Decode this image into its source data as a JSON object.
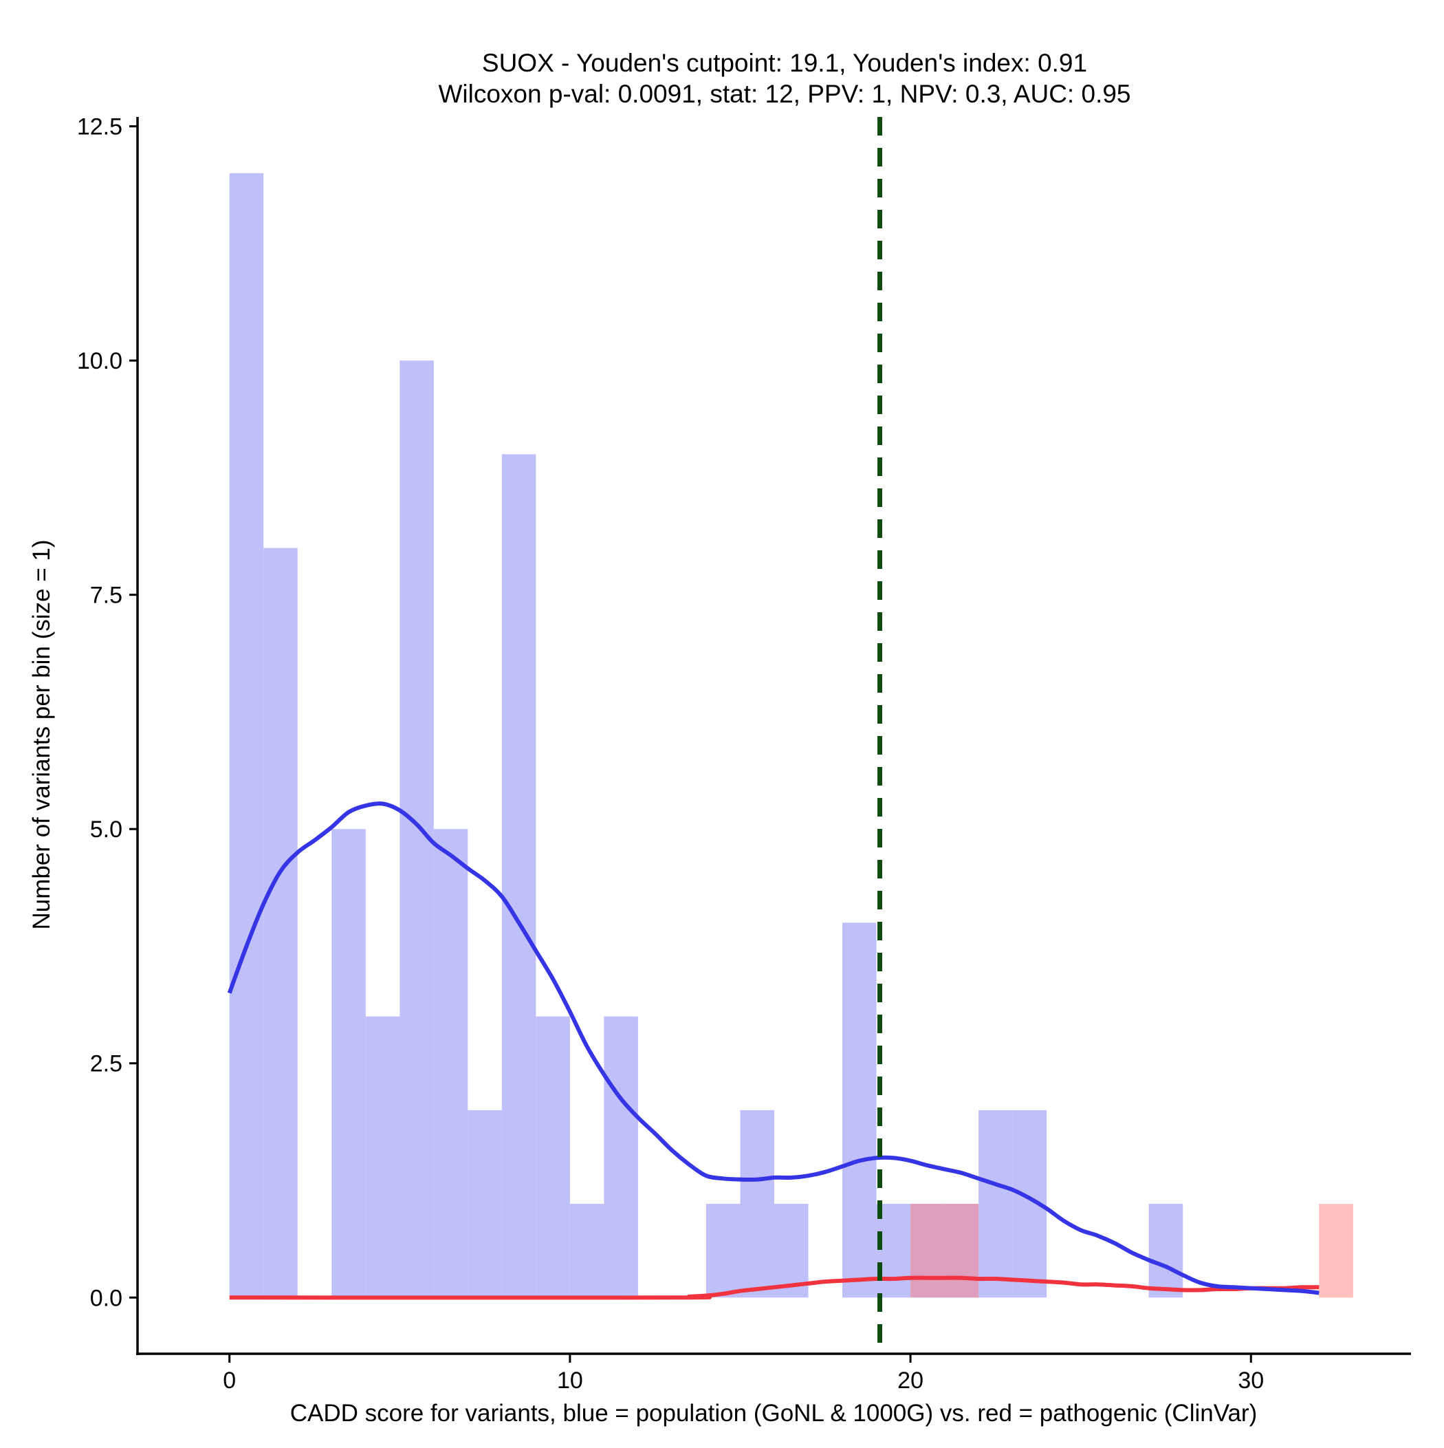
{
  "chart_data": {
    "type": "bar",
    "title_line1": "SUOX - Youden's cutpoint: 19.1, Youden's index: 0.91",
    "title_line2": "Wilcoxon p-val: 0.0091, stat: 12, PPV: 1, NPV: 0.3, AUC: 0.95",
    "xlabel": "CADD score for variants, blue = population (GoNL & 1000G) vs. red = pathogenic (ClinVar)",
    "ylabel": "Number of variants per bin (size = 1)",
    "xlim": [
      -2.7,
      34.7
    ],
    "ylim": [
      -0.6,
      12.6
    ],
    "x_ticks": [
      0,
      10,
      20,
      30
    ],
    "x_tick_labels": [
      "0",
      "10",
      "20",
      "30"
    ],
    "y_ticks": [
      0,
      2.5,
      5,
      7.5,
      10,
      12.5
    ],
    "y_tick_labels": [
      "0.0",
      "2.5",
      "5.0",
      "7.5",
      "10.0",
      "12.5"
    ],
    "bin_width": 1,
    "cutpoint": 19.1,
    "colors": {
      "population_bar": "#bfbff9",
      "pathogenic_bar": "#ffbfbf",
      "population_line": "#3535e6",
      "pathogenic_line": "#f0333f",
      "cutpoint_line": "#0f4b0f"
    },
    "series": [
      {
        "name": "population",
        "bins": [
          {
            "start": 0,
            "count": 12
          },
          {
            "start": 1,
            "count": 8
          },
          {
            "start": 3,
            "count": 5
          },
          {
            "start": 4,
            "count": 3
          },
          {
            "start": 5,
            "count": 10
          },
          {
            "start": 6,
            "count": 5
          },
          {
            "start": 7,
            "count": 2
          },
          {
            "start": 8,
            "count": 9
          },
          {
            "start": 9,
            "count": 3
          },
          {
            "start": 10,
            "count": 1
          },
          {
            "start": 11,
            "count": 3
          },
          {
            "start": 14,
            "count": 1
          },
          {
            "start": 15,
            "count": 2
          },
          {
            "start": 16,
            "count": 1
          },
          {
            "start": 18,
            "count": 4
          },
          {
            "start": 19,
            "count": 1
          },
          {
            "start": 20,
            "count": 1
          },
          {
            "start": 21,
            "count": 1
          },
          {
            "start": 22,
            "count": 2
          },
          {
            "start": 23,
            "count": 2
          },
          {
            "start": 27,
            "count": 1
          }
        ],
        "density": [
          [
            0,
            3.25
          ],
          [
            0.5,
            3.75
          ],
          [
            1,
            4.2
          ],
          [
            1.5,
            4.55
          ],
          [
            2,
            4.75
          ],
          [
            2.5,
            4.88
          ],
          [
            3,
            5.02
          ],
          [
            3.5,
            5.18
          ],
          [
            4,
            5.25
          ],
          [
            4.5,
            5.27
          ],
          [
            5,
            5.2
          ],
          [
            5.5,
            5.05
          ],
          [
            6,
            4.85
          ],
          [
            6.5,
            4.72
          ],
          [
            7,
            4.58
          ],
          [
            7.5,
            4.45
          ],
          [
            8,
            4.28
          ],
          [
            8.5,
            4.0
          ],
          [
            9,
            3.7
          ],
          [
            9.5,
            3.4
          ],
          [
            10,
            3.05
          ],
          [
            10.5,
            2.68
          ],
          [
            11,
            2.38
          ],
          [
            11.5,
            2.12
          ],
          [
            12,
            1.92
          ],
          [
            12.5,
            1.75
          ],
          [
            13,
            1.57
          ],
          [
            13.5,
            1.42
          ],
          [
            14,
            1.3
          ],
          [
            14.5,
            1.27
          ],
          [
            15,
            1.26
          ],
          [
            15.5,
            1.26
          ],
          [
            16,
            1.28
          ],
          [
            16.5,
            1.28
          ],
          [
            17,
            1.3
          ],
          [
            17.5,
            1.34
          ],
          [
            18,
            1.4
          ],
          [
            18.5,
            1.46
          ],
          [
            19,
            1.49
          ],
          [
            19.5,
            1.49
          ],
          [
            20,
            1.46
          ],
          [
            20.5,
            1.41
          ],
          [
            21,
            1.37
          ],
          [
            21.5,
            1.33
          ],
          [
            22,
            1.27
          ],
          [
            22.5,
            1.21
          ],
          [
            23,
            1.15
          ],
          [
            23.5,
            1.06
          ],
          [
            24,
            0.95
          ],
          [
            24.5,
            0.82
          ],
          [
            25,
            0.72
          ],
          [
            25.5,
            0.66
          ],
          [
            26,
            0.58
          ],
          [
            26.5,
            0.48
          ],
          [
            27,
            0.4
          ],
          [
            27.5,
            0.33
          ],
          [
            28,
            0.24
          ],
          [
            28.5,
            0.16
          ],
          [
            29,
            0.12
          ],
          [
            29.5,
            0.11
          ],
          [
            30,
            0.1
          ],
          [
            30.5,
            0.09
          ],
          [
            31,
            0.08
          ],
          [
            31.5,
            0.07
          ],
          [
            32,
            0.05
          ]
        ]
      },
      {
        "name": "pathogenic",
        "bins": [
          {
            "start": 20,
            "count": 1
          },
          {
            "start": 21,
            "count": 1
          },
          {
            "start": 32,
            "count": 1
          }
        ],
        "density": [
          [
            0,
            0
          ],
          [
            13,
            0
          ],
          [
            13.5,
            0.01
          ],
          [
            14,
            0.02
          ],
          [
            14.5,
            0.04
          ],
          [
            15,
            0.07
          ],
          [
            15.5,
            0.09
          ],
          [
            16,
            0.11
          ],
          [
            16.5,
            0.13
          ],
          [
            17,
            0.15
          ],
          [
            17.5,
            0.17
          ],
          [
            18,
            0.18
          ],
          [
            18.5,
            0.19
          ],
          [
            19,
            0.2
          ],
          [
            19.5,
            0.2
          ],
          [
            20,
            0.21
          ],
          [
            20.5,
            0.21
          ],
          [
            21,
            0.21
          ],
          [
            21.5,
            0.21
          ],
          [
            22,
            0.2
          ],
          [
            22.5,
            0.2
          ],
          [
            23,
            0.19
          ],
          [
            23.5,
            0.18
          ],
          [
            24,
            0.17
          ],
          [
            24.5,
            0.16
          ],
          [
            25,
            0.14
          ],
          [
            25.5,
            0.14
          ],
          [
            26,
            0.13
          ],
          [
            26.5,
            0.12
          ],
          [
            27,
            0.1
          ],
          [
            27.5,
            0.09
          ],
          [
            28,
            0.08
          ],
          [
            28.5,
            0.08
          ],
          [
            29,
            0.09
          ],
          [
            29.5,
            0.09
          ],
          [
            30,
            0.1
          ],
          [
            30.5,
            0.1
          ],
          [
            31,
            0.1
          ],
          [
            31.5,
            0.11
          ],
          [
            32,
            0.11
          ]
        ]
      }
    ]
  }
}
